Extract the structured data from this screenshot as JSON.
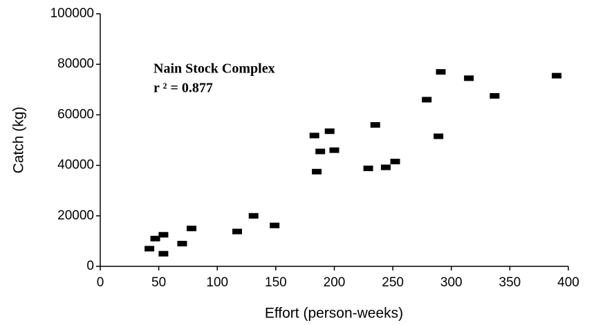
{
  "chart_data": {
    "type": "scatter",
    "xlabel": "Effort (person-weeks)",
    "ylabel": "Catch (kg)",
    "annotations": [
      "Nain Stock Complex",
      "r ² = 0.877"
    ],
    "color": "#000000",
    "x": [
      42,
      47,
      54,
      54,
      70,
      78,
      117,
      131,
      149,
      183,
      185,
      188,
      196,
      200,
      229,
      235,
      244,
      252,
      279,
      289,
      291,
      315,
      337,
      390
    ],
    "values": [
      7000,
      11000,
      12500,
      5000,
      9000,
      15000,
      13800,
      20000,
      16200,
      51800,
      37500,
      45500,
      53500,
      46000,
      38800,
      56000,
      39200,
      41500,
      66000,
      51500,
      77000,
      74500,
      67500,
      75500
    ],
    "xlim": [
      0,
      400
    ],
    "ylim": [
      0,
      100000
    ],
    "xticks": [
      0,
      50,
      100,
      150,
      200,
      250,
      300,
      350,
      400
    ],
    "yticks": [
      0,
      20000,
      40000,
      60000,
      80000,
      100000
    ]
  }
}
